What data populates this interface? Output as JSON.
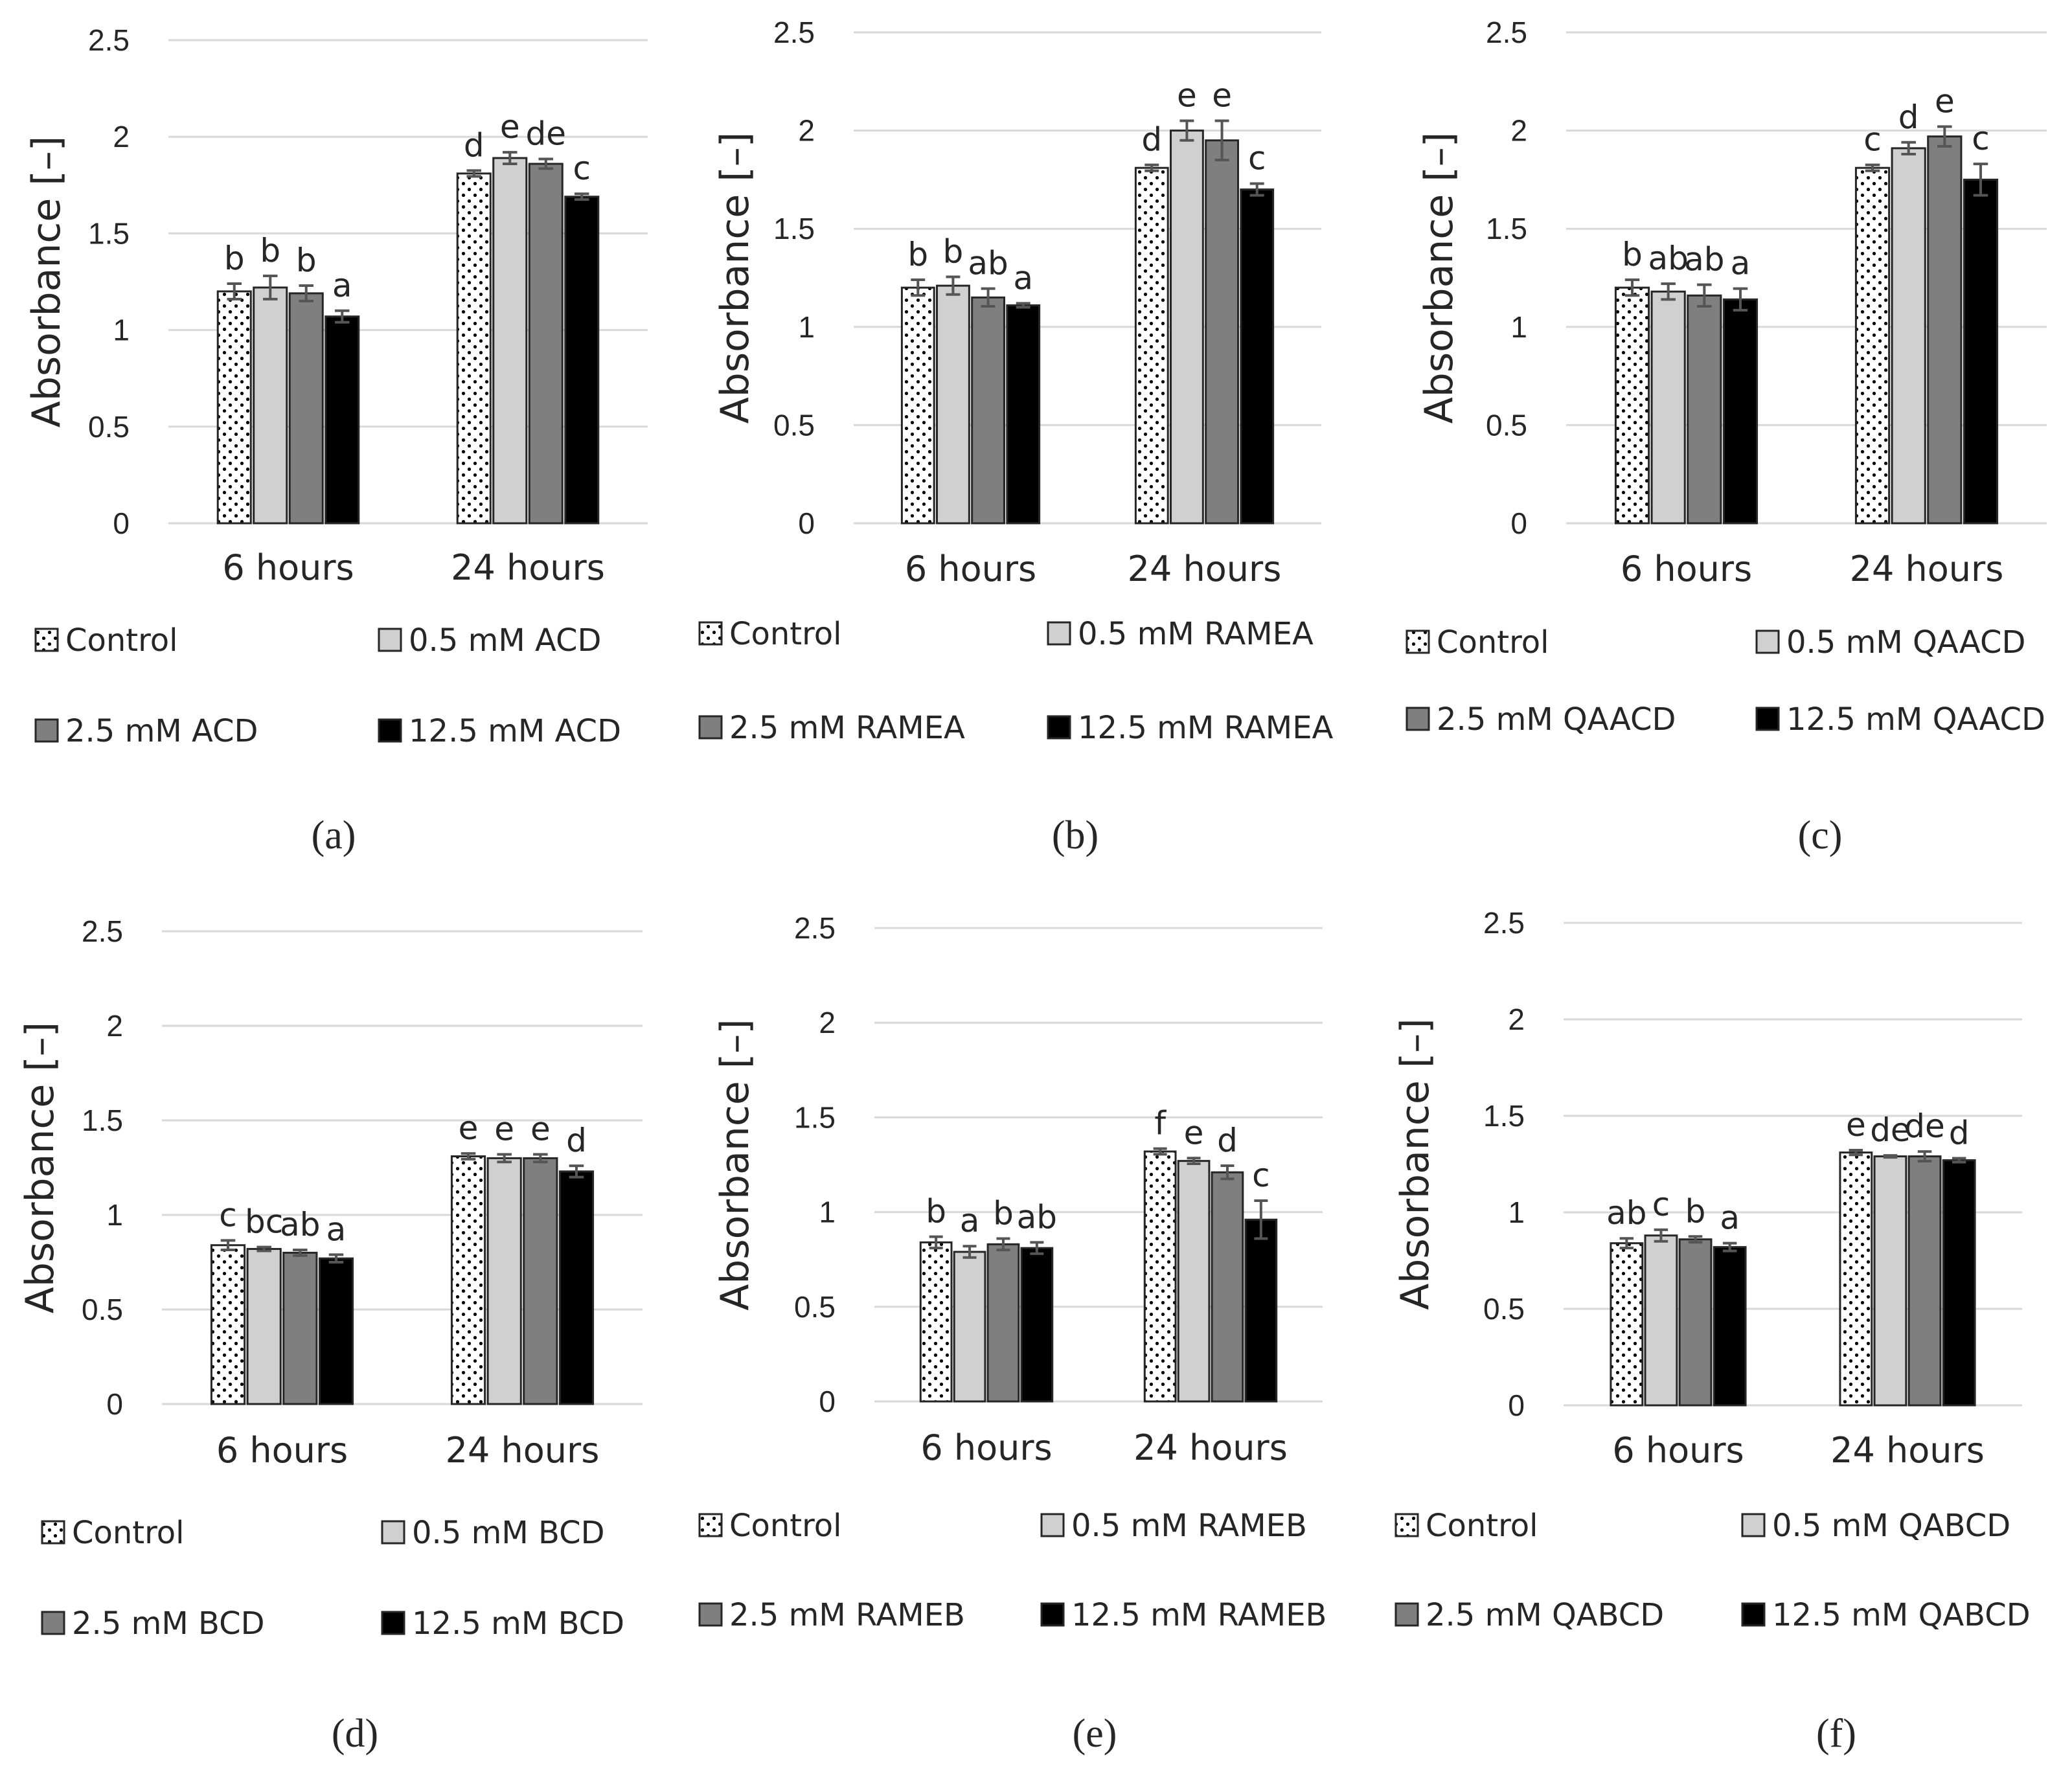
{
  "figure": {
    "colors": {
      "control": "#ffffff",
      "low": "#d0d0d0",
      "mid": "#7f7f7f",
      "high": "#000000",
      "grid": "#d9d9d9",
      "text": "#262626",
      "error": "#555555"
    },
    "patterns": {
      "control": "dots"
    }
  },
  "chart_data": [
    {
      "type": "bar",
      "panel_label": "(a)",
      "ylabel": "Absorbance [–]",
      "ylim": [
        0,
        2.5
      ],
      "yticks": [
        "0",
        "0.5",
        "1",
        "1.5",
        "2",
        "2.5"
      ],
      "categories": [
        "6 hours",
        "24 hours"
      ],
      "series": [
        {
          "name": "Control",
          "values": [
            1.2,
            1.81
          ],
          "errors": [
            0.04,
            0.015
          ],
          "letters": [
            "b",
            "d"
          ]
        },
        {
          "name": "0.5 mM ACD",
          "values": [
            1.22,
            1.89
          ],
          "errors": [
            0.06,
            0.03
          ],
          "letters": [
            "b",
            "e"
          ]
        },
        {
          "name": "2.5 mM ACD",
          "values": [
            1.19,
            1.86
          ],
          "errors": [
            0.04,
            0.025
          ],
          "letters": [
            "b",
            "de"
          ]
        },
        {
          "name": "12.5 mM ACD",
          "values": [
            1.07,
            1.69
          ],
          "errors": [
            0.03,
            0.015
          ],
          "letters": [
            "a",
            "c"
          ]
        }
      ]
    },
    {
      "type": "bar",
      "panel_label": "(b)",
      "ylabel": "Absorbance [–]",
      "ylim": [
        0,
        2.5
      ],
      "yticks": [
        "0",
        "0.5",
        "1",
        "1.5",
        "2",
        "2.5"
      ],
      "categories": [
        "6 hours",
        "24 hours"
      ],
      "series": [
        {
          "name": "Control",
          "values": [
            1.2,
            1.81
          ],
          "errors": [
            0.04,
            0.015
          ],
          "letters": [
            "b",
            "d"
          ]
        },
        {
          "name": "0.5 mM RAMEA",
          "values": [
            1.21,
            2.0
          ],
          "errors": [
            0.045,
            0.05
          ],
          "letters": [
            "b",
            "e"
          ]
        },
        {
          "name": "2.5 mM RAMEA",
          "values": [
            1.15,
            1.95
          ],
          "errors": [
            0.045,
            0.1
          ],
          "letters": [
            "ab",
            "e"
          ]
        },
        {
          "name": "12.5 mM RAMEA",
          "values": [
            1.11,
            1.7
          ],
          "errors": [
            0.01,
            0.03
          ],
          "letters": [
            "a",
            "c"
          ]
        }
      ]
    },
    {
      "type": "bar",
      "panel_label": "(c)",
      "ylabel": "Absorbance [–]",
      "ylim": [
        0,
        2.5
      ],
      "yticks": [
        "0",
        "0.5",
        "1",
        "1.5",
        "2",
        "2.5"
      ],
      "categories": [
        "6 hours",
        "24 hours"
      ],
      "series": [
        {
          "name": "Control",
          "values": [
            1.2,
            1.81
          ],
          "errors": [
            0.04,
            0.015
          ],
          "letters": [
            "b",
            "c"
          ]
        },
        {
          "name": "0.5 mM QAACD",
          "values": [
            1.18,
            1.91
          ],
          "errors": [
            0.04,
            0.03
          ],
          "letters": [
            "ab",
            "d"
          ]
        },
        {
          "name": "2.5 mM QAACD",
          "values": [
            1.16,
            1.97
          ],
          "errors": [
            0.055,
            0.05
          ],
          "letters": [
            "ab",
            "e"
          ]
        },
        {
          "name": "12.5 mM QAACD",
          "values": [
            1.14,
            1.75
          ],
          "errors": [
            0.055,
            0.08
          ],
          "letters": [
            "a",
            "c"
          ]
        }
      ]
    },
    {
      "type": "bar",
      "panel_label": "(d)",
      "ylabel": "Absorbance [–]",
      "ylim": [
        0,
        2.5
      ],
      "yticks": [
        "0",
        "0.5",
        "1",
        "1.5",
        "2",
        "2.5"
      ],
      "categories": [
        "6 hours",
        "24 hours"
      ],
      "series": [
        {
          "name": "Control",
          "values": [
            0.84,
            1.31
          ],
          "errors": [
            0.025,
            0.015
          ],
          "letters": [
            "c",
            "e"
          ]
        },
        {
          "name": "0.5 mM BCD",
          "values": [
            0.82,
            1.3
          ],
          "errors": [
            0.01,
            0.02
          ],
          "letters": [
            "bc",
            "e"
          ]
        },
        {
          "name": "2.5 mM BCD",
          "values": [
            0.8,
            1.3
          ],
          "errors": [
            0.015,
            0.02
          ],
          "letters": [
            "ab",
            "e"
          ]
        },
        {
          "name": "12.5 mM BCD",
          "values": [
            0.77,
            1.23
          ],
          "errors": [
            0.02,
            0.03
          ],
          "letters": [
            "a",
            "d"
          ]
        }
      ]
    },
    {
      "type": "bar",
      "panel_label": "(e)",
      "ylabel": "Absorbance [–]",
      "ylim": [
        0,
        2.5
      ],
      "yticks": [
        "0",
        "0.5",
        "1",
        "1.5",
        "2",
        "2.5"
      ],
      "categories": [
        "6 hours",
        "24 hours"
      ],
      "series": [
        {
          "name": "Control",
          "values": [
            0.84,
            1.32
          ],
          "errors": [
            0.03,
            0.015
          ],
          "letters": [
            "b",
            "f"
          ]
        },
        {
          "name": "0.5 mM RAMEB",
          "values": [
            0.79,
            1.27
          ],
          "errors": [
            0.03,
            0.015
          ],
          "letters": [
            "a",
            "e"
          ]
        },
        {
          "name": "2.5 mM RAMEB",
          "values": [
            0.83,
            1.21
          ],
          "errors": [
            0.03,
            0.035
          ],
          "letters": [
            "b",
            "d"
          ]
        },
        {
          "name": "12.5 mM RAMEB",
          "values": [
            0.81,
            0.96
          ],
          "errors": [
            0.03,
            0.1
          ],
          "letters": [
            "ab",
            "c"
          ]
        }
      ]
    },
    {
      "type": "bar",
      "panel_label": "(f)",
      "ylabel": "Absorbance [–]",
      "ylim": [
        0,
        2.5
      ],
      "yticks": [
        "0",
        "0.5",
        "1",
        "1.5",
        "2",
        "2.5"
      ],
      "categories": [
        "6 hours",
        "24 hours"
      ],
      "series": [
        {
          "name": "Control",
          "values": [
            0.84,
            1.31
          ],
          "errors": [
            0.025,
            0.012
          ],
          "letters": [
            "ab",
            "e"
          ]
        },
        {
          "name": "0.5 mM QABCD",
          "values": [
            0.88,
            1.29
          ],
          "errors": [
            0.03,
            0.005
          ],
          "letters": [
            "c",
            "de"
          ]
        },
        {
          "name": "2.5 mM QABCD",
          "values": [
            0.86,
            1.29
          ],
          "errors": [
            0.015,
            0.025
          ],
          "letters": [
            "b",
            "de"
          ]
        },
        {
          "name": "12.5 mM QABCD",
          "values": [
            0.82,
            1.27
          ],
          "errors": [
            0.02,
            0.01
          ],
          "letters": [
            "a",
            "d"
          ]
        }
      ]
    }
  ]
}
